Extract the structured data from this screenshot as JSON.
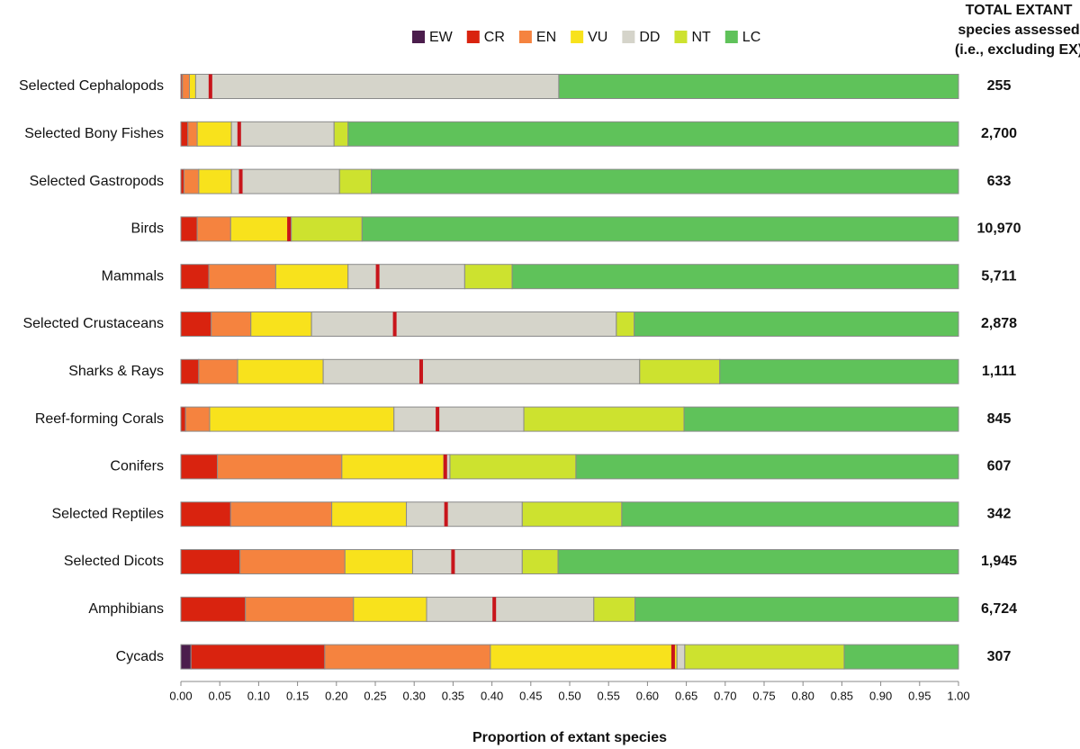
{
  "chart_data": {
    "type": "stacked-bar-horizontal",
    "x_label": "Proportion of extant species",
    "categories": [
      "Selected Cephalopods",
      "Selected Bony Fishes",
      "Selected Gastropods",
      "Birds",
      "Mammals",
      "Selected Crustaceans",
      "Sharks & Rays",
      "Reef-forming Corals",
      "Conifers",
      "Selected Reptiles",
      "Selected Dicots",
      "Amphibians",
      "Cycads"
    ],
    "series": [
      {
        "name": "EW",
        "color": "#4b1d4c",
        "values": [
          0,
          0,
          0,
          0,
          0,
          0,
          0,
          0,
          0,
          0,
          0,
          0,
          0.013
        ]
      },
      {
        "name": "CR",
        "color": "#d9230f",
        "values": [
          0.002,
          0.009,
          0.004,
          0.021,
          0.036,
          0.039,
          0.023,
          0.006,
          0.047,
          0.064,
          0.076,
          0.083,
          0.172
        ]
      },
      {
        "name": "EN",
        "color": "#f5833f",
        "values": [
          0.009,
          0.012,
          0.019,
          0.043,
          0.086,
          0.051,
          0.05,
          0.031,
          0.16,
          0.13,
          0.135,
          0.139,
          0.213
        ]
      },
      {
        "name": "VU",
        "color": "#f8e21c",
        "values": [
          0.008,
          0.044,
          0.042,
          0.074,
          0.093,
          0.078,
          0.11,
          0.237,
          0.131,
          0.096,
          0.087,
          0.094,
          0.24
        ]
      },
      {
        "name": "DD",
        "color": "#d5d4ca",
        "values": [
          0.467,
          0.132,
          0.139,
          0.004,
          0.15,
          0.392,
          0.407,
          0.167,
          0.008,
          0.149,
          0.141,
          0.215,
          0.01
        ]
      },
      {
        "name": "NT",
        "color": "#cde22f",
        "values": [
          0,
          0.018,
          0.041,
          0.091,
          0.061,
          0.023,
          0.103,
          0.206,
          0.162,
          0.128,
          0.046,
          0.053,
          0.205
        ]
      },
      {
        "name": "LC",
        "color": "#5fc25a",
        "values": [
          0.514,
          0.785,
          0.755,
          0.767,
          0.574,
          0.417,
          0.307,
          0.353,
          0.492,
          0.433,
          0.515,
          0.416,
          0.147
        ]
      }
    ],
    "markers": {
      "color": "#c8151b",
      "values": [
        0.038,
        0.075,
        0.077,
        0.139,
        0.253,
        0.275,
        0.309,
        0.33,
        0.34,
        0.341,
        0.35,
        0.403,
        0.633
      ]
    },
    "totals": {
      "title": [
        "TOTAL EXTANT",
        "species assessed",
        "(i.e., excluding EX)"
      ],
      "values": [
        {
          "value": 255,
          "label": "255"
        },
        {
          "value": 2700,
          "label": "2,700"
        },
        {
          "value": 633,
          "label": "633"
        },
        {
          "value": 10970,
          "label": "10,970"
        },
        {
          "value": 5711,
          "label": "5,711"
        },
        {
          "value": 2878,
          "label": "2,878"
        },
        {
          "value": 1111,
          "label": "1,111"
        },
        {
          "value": 845,
          "label": "845"
        },
        {
          "value": 607,
          "label": "607"
        },
        {
          "value": 342,
          "label": "342"
        },
        {
          "value": 1945,
          "label": "1,945"
        },
        {
          "value": 6724,
          "label": "6,724"
        },
        {
          "value": 307,
          "label": "307"
        }
      ]
    },
    "xlim": [
      0,
      1
    ],
    "xticks": [
      {
        "value": 0,
        "label": "0.00"
      },
      {
        "value": 0.05,
        "label": "0.05"
      },
      {
        "value": 0.1,
        "label": "0.10"
      },
      {
        "value": 0.15,
        "label": "0.15"
      },
      {
        "value": 0.2,
        "label": "0.20"
      },
      {
        "value": 0.25,
        "label": "0.25"
      },
      {
        "value": 0.3,
        "label": "0.30"
      },
      {
        "value": 0.35,
        "label": "0.35"
      },
      {
        "value": 0.4,
        "label": "0.40"
      },
      {
        "value": 0.45,
        "label": "0.45"
      },
      {
        "value": 0.5,
        "label": "0.50"
      },
      {
        "value": 0.55,
        "label": "0.55"
      },
      {
        "value": 0.6,
        "label": "0.60"
      },
      {
        "value": 0.65,
        "label": "0.65"
      },
      {
        "value": 0.7,
        "label": "0.70"
      },
      {
        "value": 0.75,
        "label": "0.75"
      },
      {
        "value": 0.8,
        "label": "0.80"
      },
      {
        "value": 0.85,
        "label": "0.85"
      },
      {
        "value": 0.9,
        "label": "0.90"
      },
      {
        "value": 0.95,
        "label": "0.95"
      },
      {
        "value": 1,
        "label": "1.00"
      }
    ],
    "legend": "top"
  }
}
